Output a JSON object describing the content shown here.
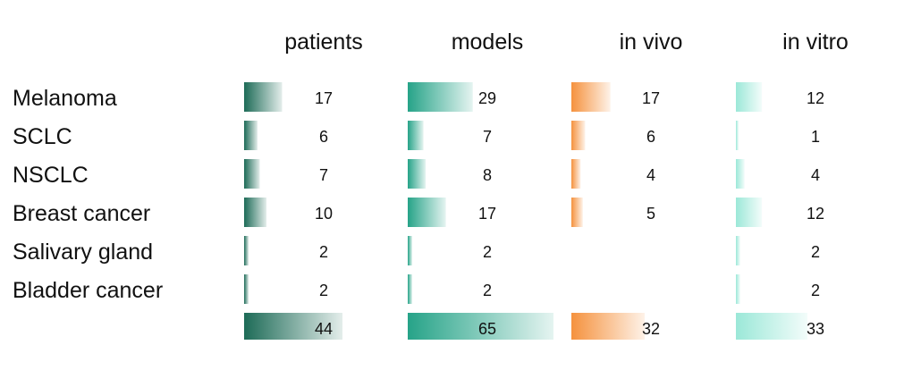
{
  "chart_data": {
    "type": "table",
    "columns": [
      {
        "name": "patients",
        "color": "#1d6b57"
      },
      {
        "name": "models",
        "color": "#26a388"
      },
      {
        "name": "in vivo",
        "color": "#f5923e"
      },
      {
        "name": "in vitro",
        "color": "#9be8d8"
      }
    ],
    "rows": [
      {
        "label": "Melanoma",
        "values": [
          17,
          29,
          17,
          12
        ]
      },
      {
        "label": "SCLC",
        "values": [
          6,
          7,
          6,
          1
        ]
      },
      {
        "label": "NSCLC",
        "values": [
          7,
          8,
          4,
          4
        ]
      },
      {
        "label": "Breast cancer",
        "values": [
          10,
          17,
          5,
          12
        ]
      },
      {
        "label": "Salivary gland",
        "values": [
          2,
          2,
          null,
          2
        ]
      },
      {
        "label": "Bladder cancer",
        "values": [
          2,
          2,
          null,
          2
        ]
      }
    ],
    "totals": [
      44,
      65,
      32,
      33
    ]
  }
}
